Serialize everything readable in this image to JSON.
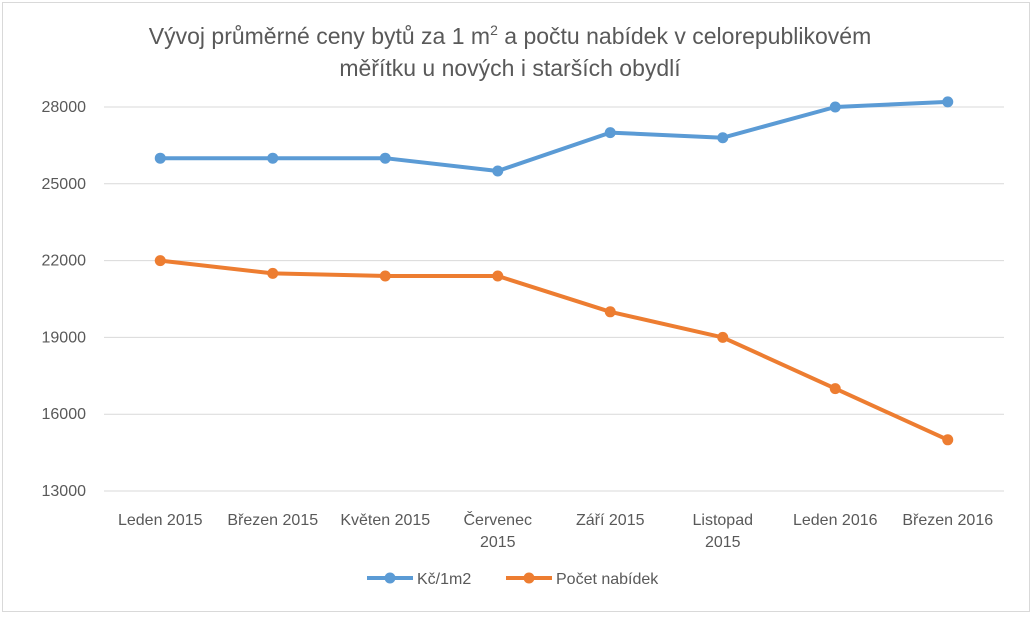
{
  "chart_data": {
    "type": "line",
    "title": {
      "part1": "Vývoj průměrné ceny bytů za 1 m",
      "sup": "2",
      "part2": " a počtu nabídek v celorepublikovém",
      "line2": "měřítku u nových i starších obydlí"
    },
    "categories": [
      [
        "Leden 2015"
      ],
      [
        "Březen 2015"
      ],
      [
        "Květen 2015"
      ],
      [
        "Červenec",
        "2015"
      ],
      [
        "Září 2015"
      ],
      [
        "Listopad",
        "2015"
      ],
      [
        "Leden 2016"
      ],
      [
        "Březen 2016"
      ]
    ],
    "series": [
      {
        "name": "Kč/1m2",
        "color": "#5b9bd5",
        "values": [
          26000,
          26000,
          26000,
          25500,
          27000,
          26800,
          28000,
          28200
        ]
      },
      {
        "name": "Počet nabídek",
        "color": "#ed7d31",
        "values": [
          22000,
          21500,
          21400,
          21400,
          20000,
          19000,
          17000,
          15000
        ]
      }
    ],
    "yticks": [
      13000,
      16000,
      19000,
      22000,
      25000,
      28000
    ],
    "ylim": [
      13000,
      28000
    ],
    "grid": true,
    "legend_position": "bottom"
  }
}
